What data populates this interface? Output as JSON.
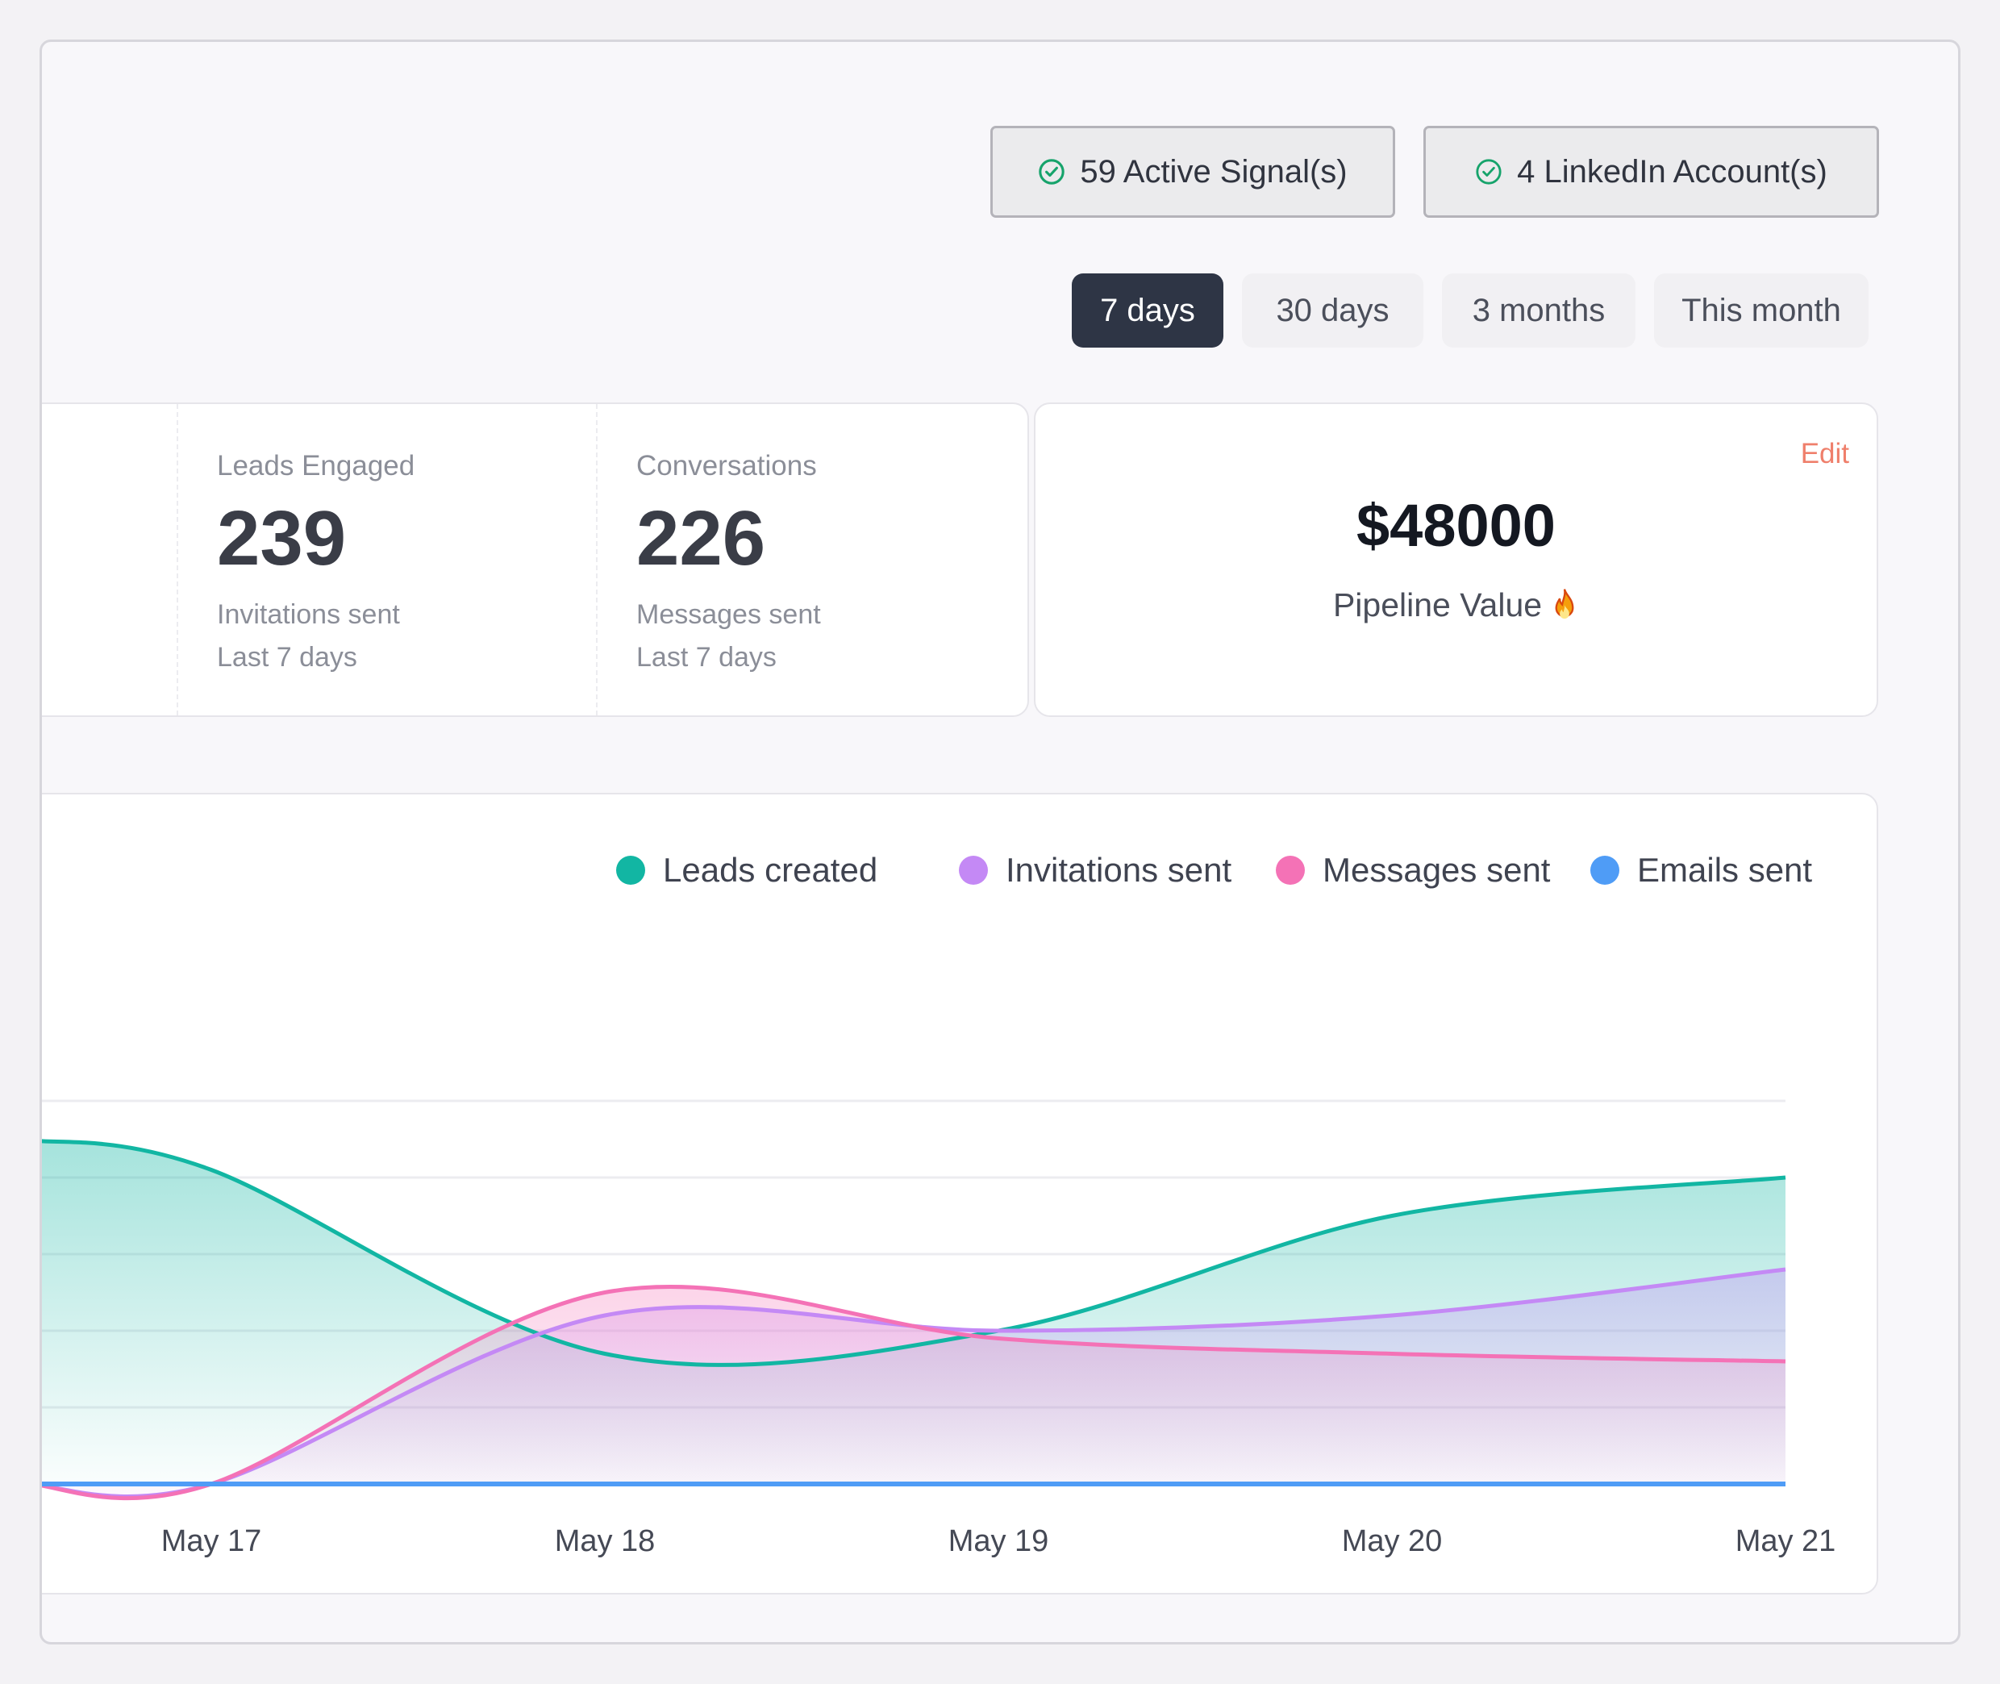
{
  "header": {
    "active_signals": "59 Active Signal(s)",
    "linkedin_accounts": "4 LinkedIn Account(s)",
    "check_color": "#16a36b"
  },
  "period_tabs": [
    {
      "label": "7 days",
      "active": true
    },
    {
      "label": "30 days",
      "active": false
    },
    {
      "label": "3 months",
      "active": false
    },
    {
      "label": "This month",
      "active": false
    }
  ],
  "stats": [
    {
      "label": "Leads Engaged",
      "value": "239",
      "sub": "Invitations sent",
      "period": "Last 7 days"
    },
    {
      "label": "Conversations",
      "value": "226",
      "sub": "Messages sent",
      "period": "Last 7 days"
    }
  ],
  "pipeline": {
    "edit_label": "Edit",
    "value": "$48000",
    "label": "Pipeline Value",
    "icon": "fire-icon"
  },
  "chart_data": {
    "type": "area",
    "categories": [
      "May 17",
      "May 18",
      "May 19",
      "May 20",
      "May 21"
    ],
    "grid": true,
    "legend_position": "top-right",
    "series": [
      {
        "name": "Leads created",
        "color": "#12b6a3",
        "values": [
          4.1,
          1.7,
          2.0,
          3.5,
          4.0
        ]
      },
      {
        "name": "Invitations sent",
        "color": "#c489f5",
        "values": [
          0.0,
          2.2,
          2.0,
          2.2,
          2.8
        ]
      },
      {
        "name": "Messages sent",
        "color": "#f472b6",
        "values": [
          0.0,
          2.5,
          1.9,
          1.7,
          1.6
        ]
      },
      {
        "name": "Emails sent",
        "color": "#4f9cf6",
        "values": [
          0,
          0,
          0,
          0,
          0
        ]
      }
    ]
  }
}
